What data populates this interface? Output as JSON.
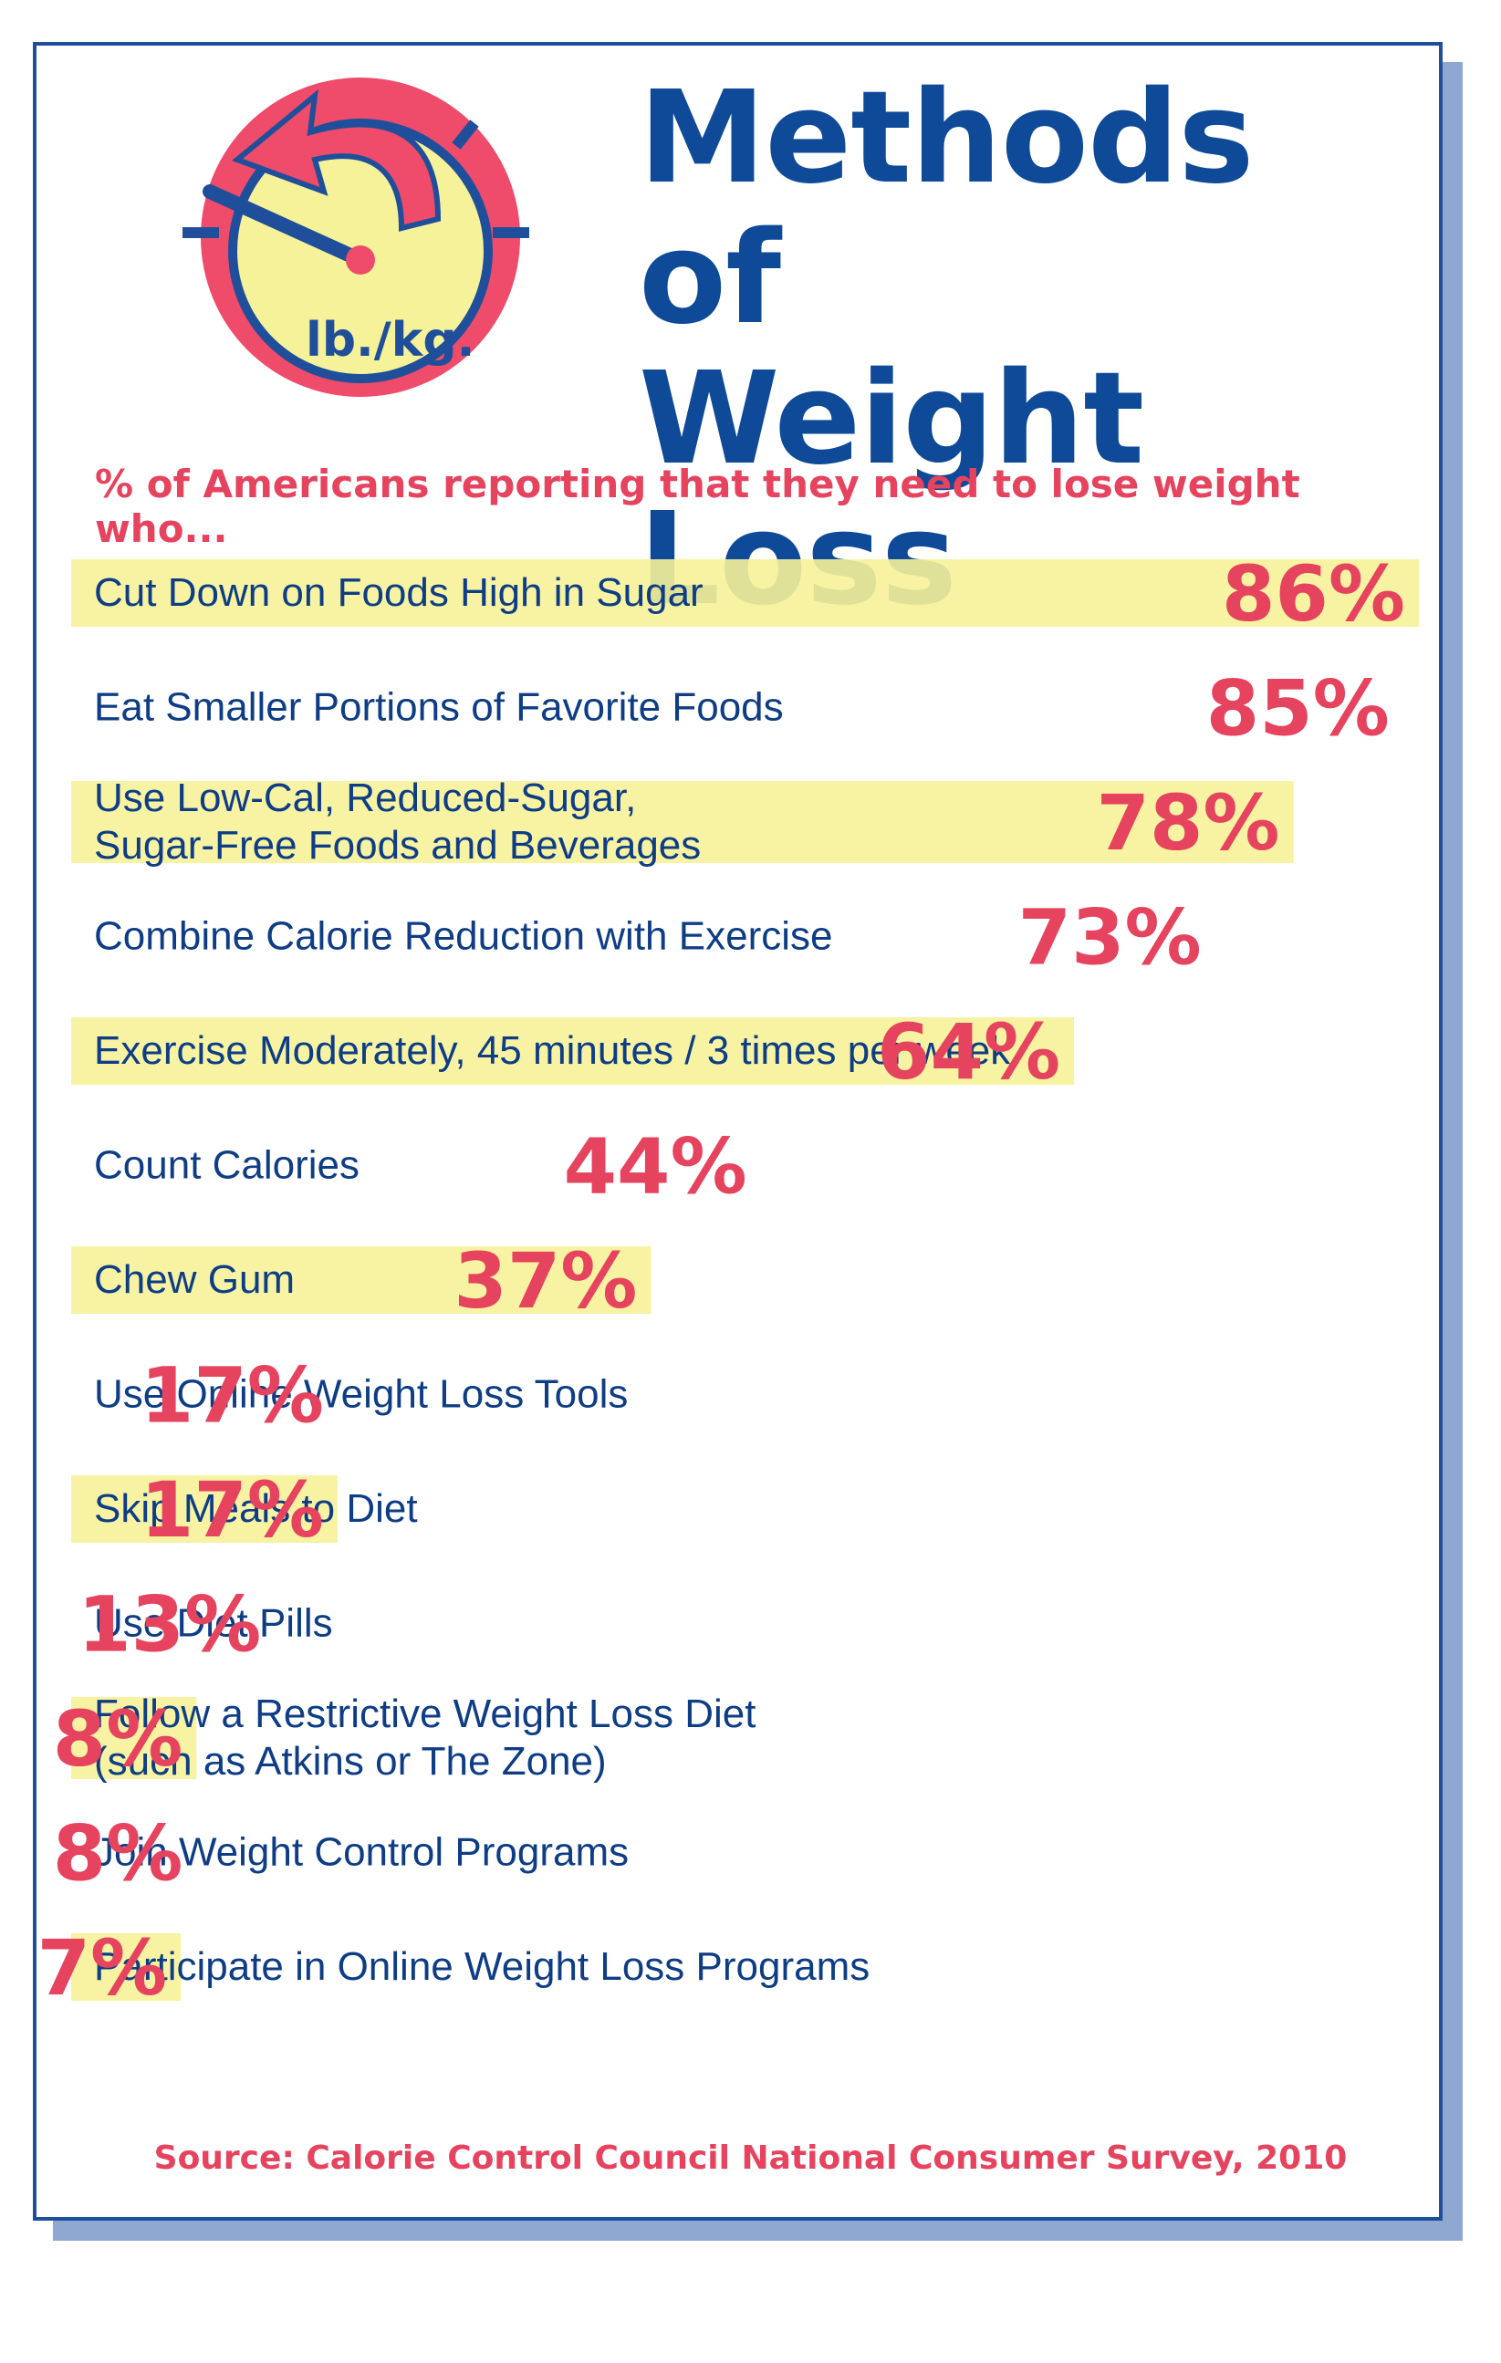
{
  "header": {
    "title_line1": "Methods of",
    "title_line2": "Weight Loss",
    "clock_label": "lb./kg."
  },
  "colors": {
    "accent_red": "#e5435e",
    "title_blue": "#0e4a98",
    "highlight_yellow": "#f6f299"
  },
  "chart_data": {
    "type": "bar",
    "title": "Methods of Weight Loss",
    "subtitle": "% of Americans reporting that they need to lose weight who...",
    "categories": [
      [
        "Cut Down on Foods High in Sugar"
      ],
      [
        "Eat Smaller Portions of Favorite Foods"
      ],
      [
        "Use Low-Cal, Reduced-Sugar,",
        "Sugar-Free Foods and Beverages"
      ],
      [
        "Combine Calorie Reduction with Exercise"
      ],
      [
        "Exercise Moderately, 45 minutes / 3 times per week"
      ],
      [
        "Count Calories"
      ],
      [
        "Chew Gum"
      ],
      [
        "Use Online Weight Loss Tools"
      ],
      [
        "Skip Meals to Diet"
      ],
      [
        "Use Diet Pills"
      ],
      [
        "Follow a Restrictive Weight Loss Diet",
        "(such as Atkins or The Zone)"
      ],
      [
        "Join Weight Control Programs"
      ],
      [
        "Participate in Online Weight Loss Programs"
      ]
    ],
    "values": [
      86,
      85,
      78,
      73,
      64,
      44,
      37,
      17,
      17,
      13,
      8,
      8,
      7
    ],
    "value_labels": [
      "86%",
      "85%",
      "78%",
      "73%",
      "64%",
      "44%",
      "37%",
      "17%",
      "17%",
      "13%",
      "8%",
      "8%",
      "7%"
    ],
    "highlighted": [
      true,
      false,
      true,
      false,
      true,
      false,
      true,
      false,
      true,
      false,
      true,
      false,
      true
    ],
    "unit": "%",
    "source": "Source: Calorie Control Council National Consumer Survey, 2010"
  }
}
